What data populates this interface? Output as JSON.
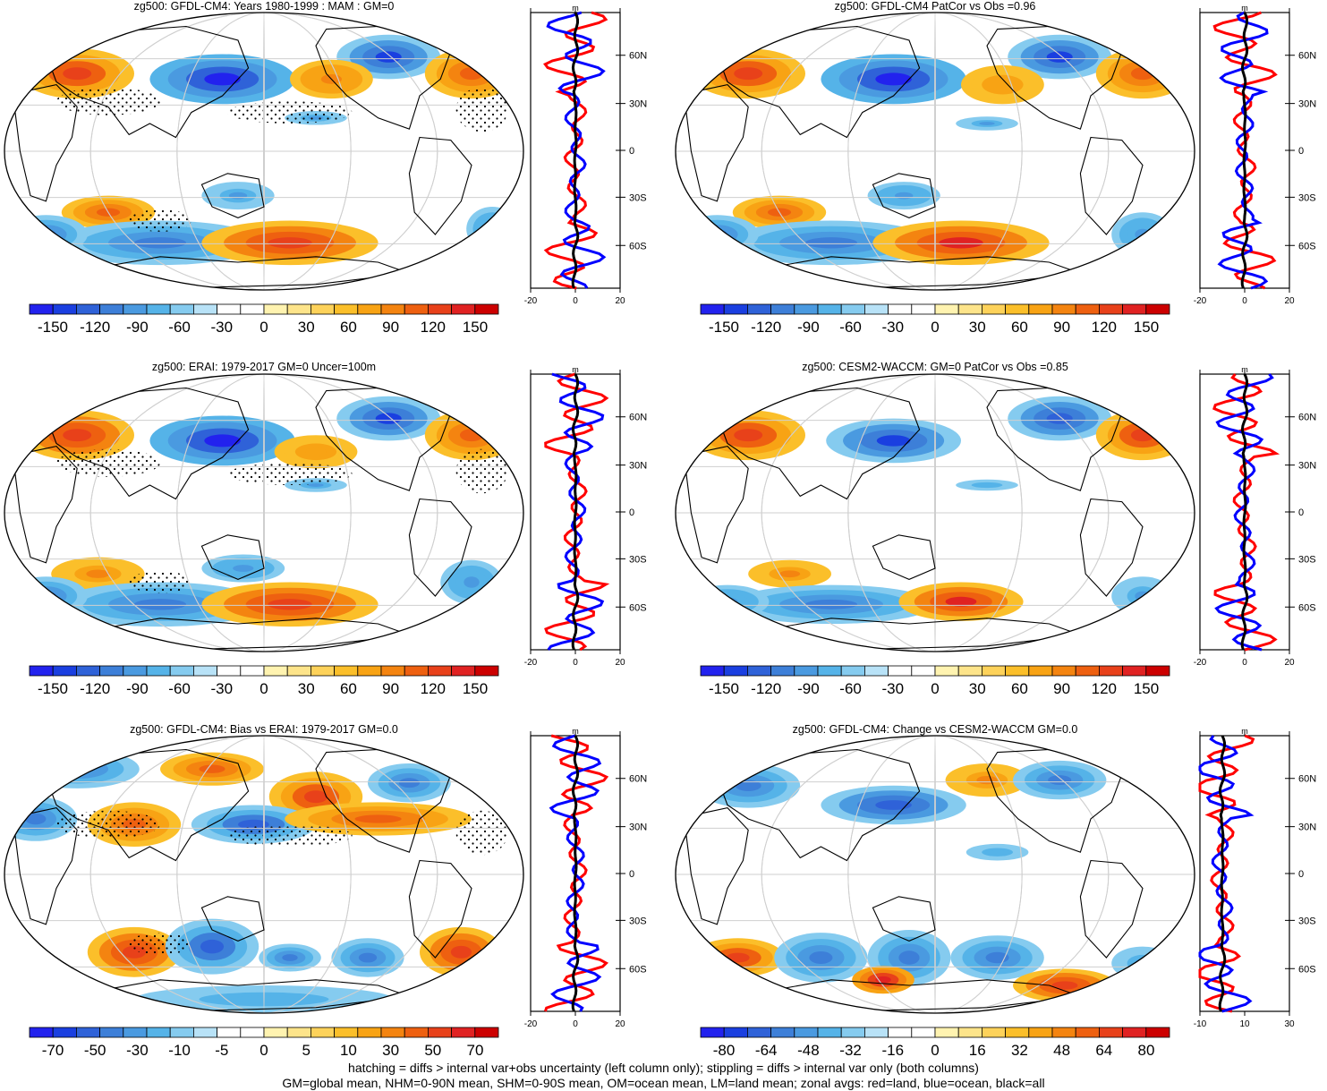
{
  "colors": {
    "cb11": [
      "#2222ee",
      "#1a3fe0",
      "#2f62d8",
      "#3d7fd8",
      "#4a9ae0",
      "#55b3e8",
      "#85cbef",
      "#b8e2f7",
      "#ffffff",
      "#ffffff",
      "#fff3b0",
      "#fde48a",
      "#fdd25a",
      "#fbbf2a",
      "#f8a314",
      "#f48410",
      "#ee6010",
      "#e8411a",
      "#e02222",
      "#cc0000"
    ],
    "cb_count": 20
  },
  "panels": [
    {
      "id": "p1",
      "title": "zg500: GFDL-CM4: Years 1980-1999 : MAM : GM=0",
      "ticks": [
        "-150",
        "-120",
        "-90",
        "-60",
        "-30",
        "0",
        "30",
        "60",
        "90",
        "120",
        "150"
      ],
      "zonal_ticks": [
        "-20",
        "0",
        "20"
      ],
      "lat_labels": [
        "60N",
        "30N",
        "0",
        "30S",
        "60S"
      ],
      "stipple": true
    },
    {
      "id": "p2",
      "title": "zg500: GFDL-CM4 PatCor vs Obs =0.96",
      "ticks": [
        "-150",
        "-120",
        "-90",
        "-60",
        "-30",
        "0",
        "30",
        "60",
        "90",
        "120",
        "150"
      ],
      "zonal_ticks": [
        "-20",
        "0",
        "20"
      ],
      "lat_labels": [
        "60N",
        "30N",
        "0",
        "30S",
        "60S"
      ],
      "stipple": false
    },
    {
      "id": "p3",
      "title": "zg500: ERAI: 1979-2017 GM=0 Uncer=100m",
      "ticks": [
        "-150",
        "-120",
        "-90",
        "-60",
        "-30",
        "0",
        "30",
        "60",
        "90",
        "120",
        "150"
      ],
      "zonal_ticks": [
        "-20",
        "0",
        "20"
      ],
      "lat_labels": [
        "60N",
        "30N",
        "0",
        "30S",
        "60S"
      ],
      "stipple": true
    },
    {
      "id": "p4",
      "title": "zg500: CESM2-WACCM: GM=0 PatCor vs Obs =0.85",
      "ticks": [
        "-150",
        "-120",
        "-90",
        "-60",
        "-30",
        "0",
        "30",
        "60",
        "90",
        "120",
        "150"
      ],
      "zonal_ticks": [
        "-20",
        "0",
        "20"
      ],
      "lat_labels": [
        "60N",
        "30N",
        "0",
        "30S",
        "60S"
      ],
      "stipple": false
    },
    {
      "id": "p5",
      "title": "zg500: GFDL-CM4: Bias vs ERAI: 1979-2017 GM=0.0",
      "ticks": [
        "-70",
        "-50",
        "-30",
        "-10",
        "-5",
        "0",
        "5",
        "10",
        "30",
        "50",
        "70"
      ],
      "zonal_ticks": [
        "-20",
        "0",
        "20"
      ],
      "lat_labels": [
        "60N",
        "30N",
        "0",
        "30S",
        "60S"
      ],
      "stipple": true
    },
    {
      "id": "p6",
      "title": "zg500: GFDL-CM4: Change vs CESM2-WACCM GM=0.0",
      "ticks": [
        "-80",
        "-64",
        "-48",
        "-32",
        "-16",
        "0",
        "16",
        "32",
        "48",
        "64",
        "80"
      ],
      "zonal_ticks": [
        "-10",
        "10",
        "30"
      ],
      "lat_labels": [
        "60N",
        "30N",
        "0",
        "30S",
        "60S"
      ],
      "stipple": false
    }
  ],
  "zonal_unit": "m",
  "footer": {
    "line1": "hatching = diffs > internal var+obs uncertainty (left column only); stippling = diffs > internal var only (both columns)",
    "line2": "GM=global mean, NHM=0-90N mean, SHM=0-90S mean, OM=ocean mean, LM=land mean; zonal avgs: red=land, blue=ocean, black=all"
  },
  "chart_data": {
    "type": "heatmap",
    "description_fields": "six global maps of zg500 anomalies with zonal-average side plots",
    "zonal_series": [
      "land (red)",
      "ocean (blue)",
      "all (black)"
    ],
    "lat_range": [
      -90,
      90
    ]
  }
}
